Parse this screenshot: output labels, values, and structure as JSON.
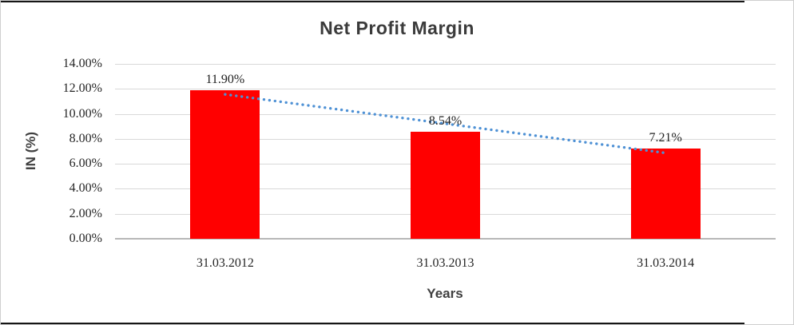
{
  "chart_data": {
    "type": "bar",
    "title": "Net Profit Margin",
    "xlabel": "Years",
    "ylabel": "IN (%)",
    "categories": [
      "31.03.2012",
      "31.03.2013",
      "31.03.2014"
    ],
    "values": [
      11.9,
      8.54,
      7.21
    ],
    "data_labels": [
      "11.90%",
      "8.54%",
      "7.21%"
    ],
    "y_ticks": [
      "0.00%",
      "2.00%",
      "4.00%",
      "6.00%",
      "8.00%",
      "10.00%",
      "12.00%",
      "14.00%"
    ],
    "ylim": [
      0,
      14
    ],
    "grid": true,
    "legend": "none",
    "bar_color": "#ff0000",
    "gridline_color": "#d9d9d9",
    "axis_line_color": "#b7b7b7",
    "title_color": "#3b3b3b",
    "trendline": {
      "type": "linear",
      "style": "dotted",
      "color": "#4e91d5",
      "start_value": 11.56,
      "end_value": 6.87
    }
  }
}
